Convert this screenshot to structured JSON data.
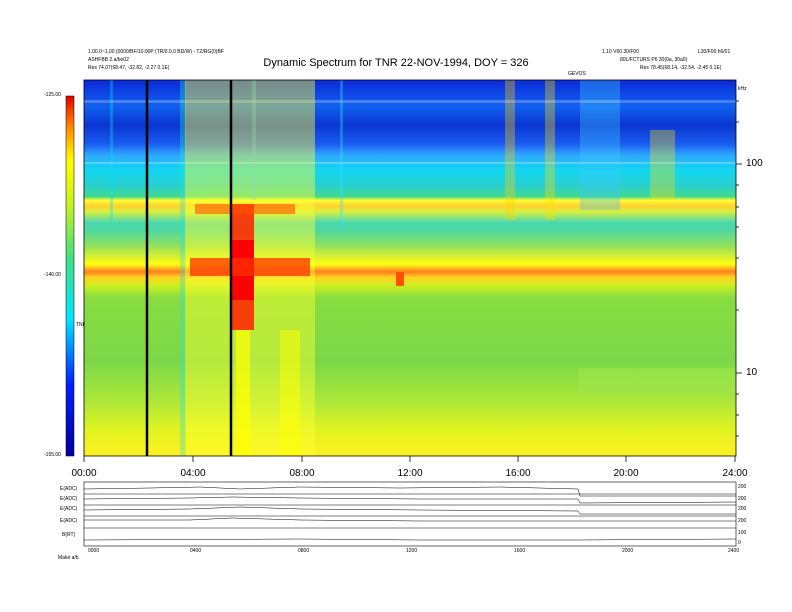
{
  "header": {
    "left_line1": "1.00.0~1.00 (0000/BF/10:00P (TR/0.0.0 BD/W) - TZ/RG(0)BF",
    "left_line2": "ASHFBB 2.a/bo02",
    "left_line3": "Res    74.07(68.47, -32.82, -2.27 0.1E)",
    "right_line1": "1.10 V60 30/F00",
    "right_line2": "L30/F00 h6/01",
    "right_line3": "80L/FCTURS P6 30(0a, 30a0)",
    "right_line4": "Res    78.45(68.14, -32.54, -2.45 0.1E)",
    "marker": "GEVOS",
    "unit": "kHz"
  },
  "chart_data": {
    "type": "heatmap",
    "title": "Dynamic Spectrum for TNR 22-NOV-1994, DOY = 326",
    "x_ticks": [
      "00:00",
      "04:00",
      "08:00",
      "12:00",
      "16:00",
      "20:00",
      "24:00"
    ],
    "xlim_hours": [
      0,
      24
    ],
    "y_scale": "log",
    "ylim_khz": [
      4,
      250
    ],
    "y_ticks": [
      {
        "value": 100,
        "label": "100"
      },
      {
        "value": 10,
        "label": "10"
      }
    ],
    "colorbar": {
      "label": "TNR",
      "range": [
        -155,
        -125
      ],
      "ticks": [
        "-125.00",
        "-140.00",
        "-155.00"
      ]
    },
    "vertical_lines_hours": [
      2.3,
      5.4
    ],
    "features": [
      {
        "name": "upper band",
        "freq_khz": [
          58,
          70
        ],
        "span_hours": [
          0,
          24
        ]
      },
      {
        "name": "lower band",
        "freq_khz": [
          26,
          30
        ],
        "span_hours": [
          0,
          24
        ]
      },
      {
        "name": "burst",
        "span_hours": [
          5.5,
          6.2
        ]
      }
    ],
    "colors": {
      "low": "#0000c8",
      "mid": "#00e5ff",
      "green": "#78dc3c",
      "yellow": "#ffff00",
      "high": "#ff0000"
    }
  },
  "panels": {
    "rows": [
      {
        "label": "E(ADC)",
        "ticks": [
          "100",
          "200"
        ]
      },
      {
        "label": "E(ADC)",
        "ticks": [
          "100",
          "200"
        ]
      },
      {
        "label": "E(ADC)",
        "ticks": [
          "100",
          "200"
        ]
      },
      {
        "label": "E(ADC)",
        "ticks": [
          "100",
          "200"
        ]
      },
      {
        "label": "B(RT)",
        "ticks": [
          "100",
          "0"
        ]
      }
    ],
    "x_ticks": [
      "0000",
      "0400",
      "0800",
      "1200",
      "1600",
      "2000",
      "2400"
    ],
    "footer": "Make  a/b"
  }
}
